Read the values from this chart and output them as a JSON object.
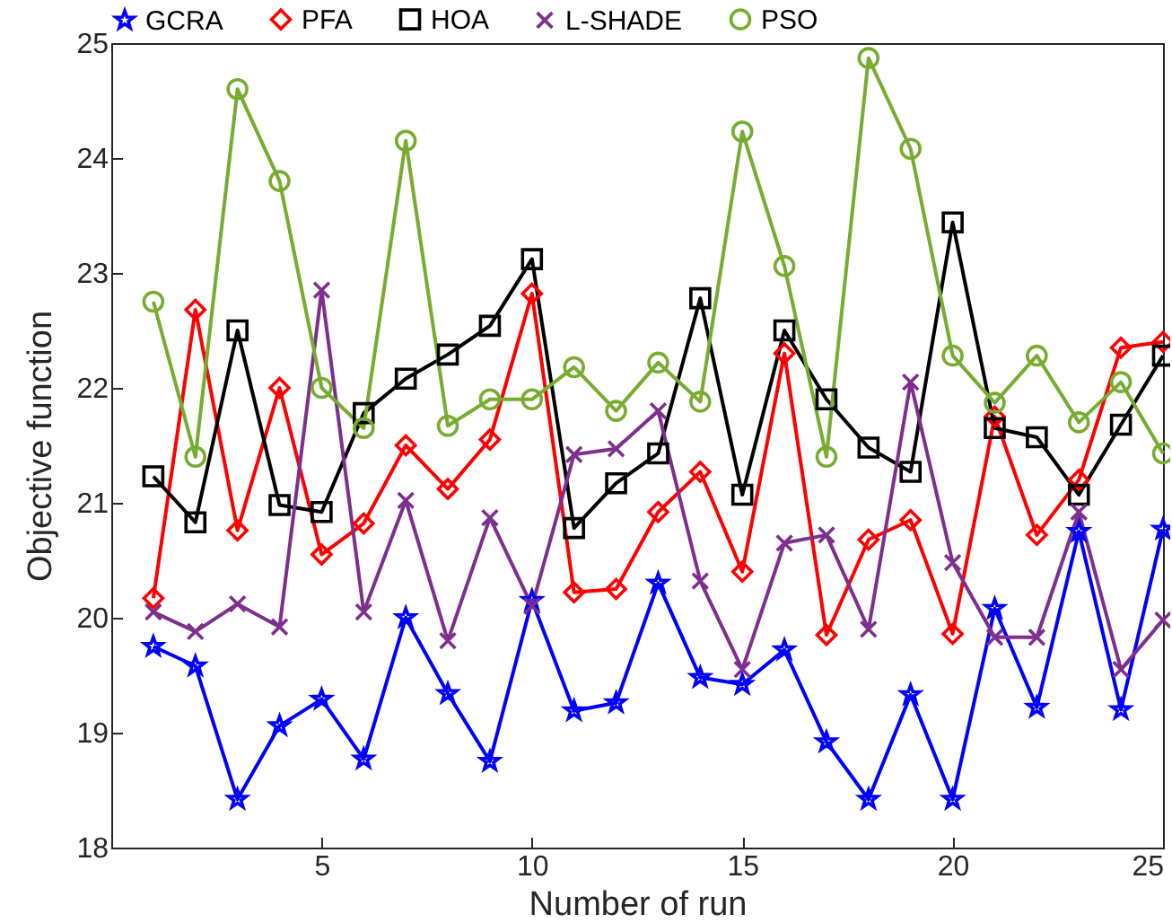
{
  "chart_data": {
    "type": "line",
    "xlabel": "Number of run",
    "ylabel": "Objective function",
    "x": [
      1,
      2,
      3,
      4,
      5,
      6,
      7,
      8,
      9,
      10,
      11,
      12,
      13,
      14,
      15,
      16,
      17,
      18,
      19,
      20,
      21,
      22,
      23,
      24,
      25
    ],
    "xlim": [
      0,
      25
    ],
    "xticks": [
      5,
      10,
      15,
      20,
      25
    ],
    "ylim": [
      18,
      25
    ],
    "yticks": [
      18,
      19,
      20,
      21,
      22,
      23,
      24,
      25
    ],
    "grid": false,
    "legend": "top",
    "line_style": "solid",
    "series": [
      {
        "name": "GCRA",
        "color": "#0000ff",
        "marker": "star",
        "values": [
          19.75,
          19.58,
          18.42,
          19.06,
          19.29,
          18.77,
          20.0,
          19.34,
          18.75,
          20.15,
          19.19,
          19.26,
          20.3,
          19.48,
          19.42,
          19.72,
          18.92,
          18.42,
          19.33,
          18.42,
          20.08,
          19.22,
          20.75,
          19.2,
          20.77
        ]
      },
      {
        "name": "PFA",
        "color": "#ff0000",
        "marker": "diamond",
        "values": [
          20.17,
          22.68,
          20.76,
          22.0,
          20.55,
          20.82,
          21.5,
          21.12,
          21.55,
          22.82,
          20.22,
          20.25,
          20.92,
          21.27,
          20.4,
          22.3,
          19.85,
          20.68,
          20.85,
          19.86,
          21.75,
          20.72,
          21.2,
          22.35,
          22.4
        ]
      },
      {
        "name": "HOA",
        "color": "#000000",
        "marker": "square",
        "values": [
          21.23,
          20.83,
          22.5,
          20.98,
          20.92,
          21.78,
          22.08,
          22.29,
          22.54,
          23.12,
          20.78,
          21.17,
          21.43,
          22.78,
          21.07,
          22.5,
          21.9,
          21.48,
          21.27,
          23.44,
          21.65,
          21.57,
          21.07,
          21.68,
          22.28
        ]
      },
      {
        "name": "L-SHADE",
        "color": "#7e2f8e",
        "marker": "cross",
        "values": [
          20.05,
          19.88,
          20.12,
          19.92,
          22.85,
          20.05,
          21.02,
          19.8,
          20.87,
          20.1,
          21.42,
          21.47,
          21.8,
          20.32,
          19.55,
          20.65,
          20.72,
          19.9,
          22.05,
          20.48,
          19.83,
          19.83,
          20.92,
          19.55,
          19.98
        ]
      },
      {
        "name": "PSO",
        "color": "#77ac30",
        "marker": "circle",
        "values": [
          22.75,
          21.4,
          24.6,
          23.8,
          22.0,
          21.65,
          24.15,
          21.67,
          21.9,
          21.9,
          22.18,
          21.8,
          22.22,
          21.88,
          24.23,
          23.06,
          21.4,
          24.87,
          24.08,
          22.28,
          21.87,
          22.28,
          21.7,
          22.05,
          21.43
        ]
      }
    ]
  }
}
